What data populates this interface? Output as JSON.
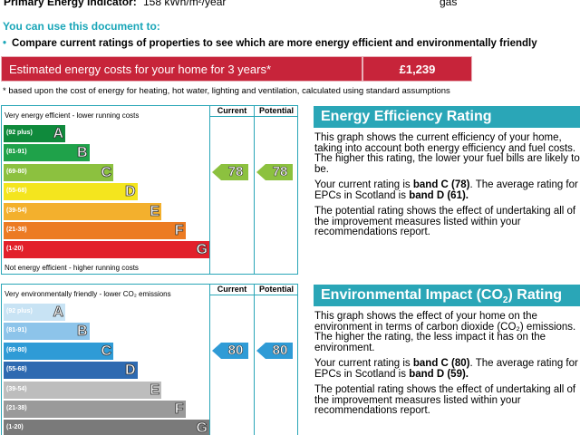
{
  "header": {
    "primary_energy_label": "Primary Energy Indicator:",
    "primary_energy_value": "158 kWh/m²/year",
    "fuel": "gas"
  },
  "usage": {
    "heading": "You can use this document to:",
    "bullet": "Compare current ratings of properties to see which are more energy efficient and environmentally friendly"
  },
  "cost": {
    "label": "Estimated energy costs for your home for 3 years*",
    "value": "£1,239",
    "footnote": "* based upon the cost of energy for heating, hot water, lighting and ventilation, calculated using standard assumptions"
  },
  "columns": {
    "current": "Current",
    "potential": "Potential"
  },
  "energy_chart": {
    "top_note": "Very energy efficient - lower running costs",
    "bottom_note": "Not energy efficient - higher running costs",
    "bands": [
      {
        "range": "(92 plus)",
        "letter": "A",
        "color": "#0f8a3c"
      },
      {
        "range": "(81-91)",
        "letter": "B",
        "color": "#1fa24a"
      },
      {
        "range": "(69-80)",
        "letter": "C",
        "color": "#8cc13f"
      },
      {
        "range": "(55-68)",
        "letter": "D",
        "color": "#f4e51e"
      },
      {
        "range": "(39-54)",
        "letter": "E",
        "color": "#f3b02d"
      },
      {
        "range": "(21-38)",
        "letter": "F",
        "color": "#ec7b23"
      },
      {
        "range": "(1-20)",
        "letter": "G",
        "color": "#e2202b"
      }
    ],
    "current": 78,
    "potential": 78,
    "indicator_color": "#8cc13f"
  },
  "env_chart": {
    "top_note": "Very environmentally friendly - lower CO₂ emissions",
    "bands": [
      {
        "range": "(92 plus)",
        "letter": "A",
        "color": "#c8e3f4"
      },
      {
        "range": "(81-91)",
        "letter": "B",
        "color": "#8dc4ea"
      },
      {
        "range": "(69-80)",
        "letter": "C",
        "color": "#2f9bd6"
      },
      {
        "range": "(55-68)",
        "letter": "D",
        "color": "#2e6ab1"
      },
      {
        "range": "(39-54)",
        "letter": "E",
        "color": "#bdbdbd"
      },
      {
        "range": "(21-38)",
        "letter": "F",
        "color": "#9a9a9a"
      },
      {
        "range": "(1-20)",
        "letter": "G",
        "color": "#7a7a7a"
      }
    ],
    "current": 80,
    "potential": 80,
    "indicator_color": "#2f9bd6"
  },
  "energy_info": {
    "title": "Energy Efficiency Rating",
    "p1": "This graph shows the current efficiency of your home, taking into account both energy efficiency and fuel costs. The higher this rating, the lower your fuel bills are likely to be.",
    "p2_prefix": "Your current rating is ",
    "p2_band": "band C (78)",
    "p2_mid": ". The average rating for EPCs in Scotland is ",
    "p2_avg": "band D (61).",
    "p3": "The potential rating shows the effect of undertaking all of the improvement measures listed within your recommendations report."
  },
  "env_info": {
    "title_prefix": "Environmental Impact (CO",
    "title_sub": "2",
    "title_suffix": ") Rating",
    "p1": "This graph shows the effect of your home on the environment in terms of carbon dioxide (CO₂) emissions. The higher the rating, the less impact it has on the environment.",
    "p2_prefix": "Your current rating is ",
    "p2_band": "band C (80)",
    "p2_mid": ". The average rating for EPCs in Scotland is ",
    "p2_avg": "band D (59).",
    "p3": "The potential rating shows the effect of undertaking all of the improvement measures listed within your recommendations report."
  }
}
